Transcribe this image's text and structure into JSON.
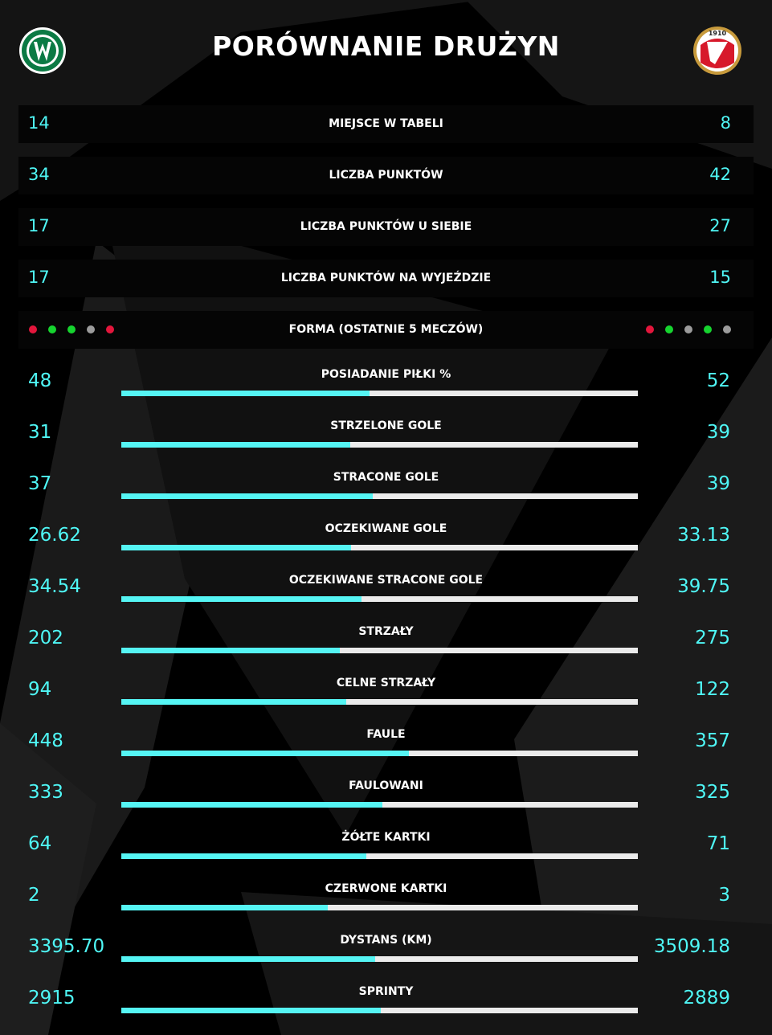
{
  "title": "PORÓWNANIE DRUŻYN",
  "logos": {
    "left": {
      "icon": "warta-poznan-crest-icon",
      "colors": {
        "ring": "#ffffff",
        "fill": "#0b7a44"
      }
    },
    "right": {
      "icon": "widzew-lodz-crest-icon",
      "year_text": "1910",
      "colors": {
        "red": "#d7192b",
        "gold": "#c79a3c"
      }
    }
  },
  "accent_color": "#4ff7f6",
  "rows": [
    {
      "label": "MIEJSCE W TABELI",
      "left": "14",
      "right": "8"
    },
    {
      "label": "LICZBA PUNKTÓW",
      "left": "34",
      "right": "42"
    },
    {
      "label": "LICZBA PUNKTÓW U SIEBIE",
      "left": "17",
      "right": "27"
    },
    {
      "label": "LICZBA PUNKTÓW NA WYJEŹDZIE",
      "left": "17",
      "right": "15"
    }
  ],
  "form": {
    "label": "FORMA (OSTATNIE 5 MECZÓW)",
    "left": [
      "L",
      "W",
      "W",
      "D",
      "L"
    ],
    "right": [
      "L",
      "W",
      "D",
      "W",
      "D"
    ],
    "colors": {
      "W": "#16d42f",
      "L": "#e3163c",
      "D": "#9c9c9c"
    }
  },
  "stats": [
    {
      "label": "POSIADANIE PIŁKI %",
      "left": "48",
      "right": "52"
    },
    {
      "label": "STRZELONE GOLE",
      "left": "31",
      "right": "39"
    },
    {
      "label": "STRACONE GOLE",
      "left": "37",
      "right": "39"
    },
    {
      "label": "OCZEKIWANE GOLE",
      "left": "26.62",
      "right": "33.13"
    },
    {
      "label": "OCZEKIWANE STRACONE GOLE",
      "left": "34.54",
      "right": "39.75"
    },
    {
      "label": "STRZAŁY",
      "left": "202",
      "right": "275"
    },
    {
      "label": "CELNE STRZAŁY",
      "left": "94",
      "right": "122"
    },
    {
      "label": "FAULE",
      "left": "448",
      "right": "357"
    },
    {
      "label": "FAULOWANI",
      "left": "333",
      "right": "325"
    },
    {
      "label": "ŻÓŁTE KARTKI",
      "left": "64",
      "right": "71"
    },
    {
      "label": "CZERWONE KARTKI",
      "left": "2",
      "right": "3"
    },
    {
      "label": "DYSTANS (KM)",
      "left": "3395.70",
      "right": "3509.18"
    },
    {
      "label": "SPRINTY",
      "left": "2915",
      "right": "2889"
    }
  ]
}
